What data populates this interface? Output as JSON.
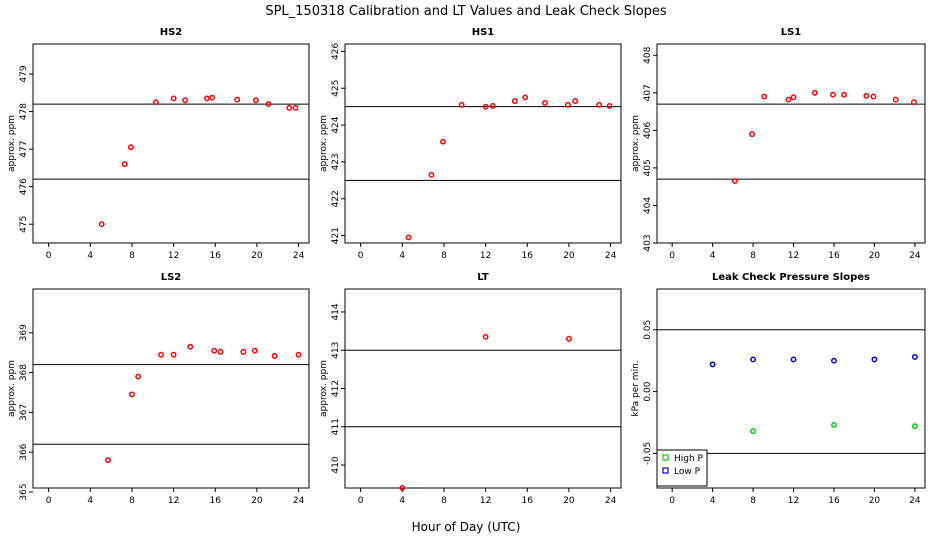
{
  "figure": {
    "title": "SPL_150318  Calibration and LT Values and Leak Check Slopes",
    "xlabel": "Hour of Day (UTC)"
  },
  "chart_data": [
    {
      "type": "scatter",
      "title": "HS2",
      "ylabel": "approx. ppm",
      "xlim": [
        -1.5,
        25
      ],
      "ylim": [
        474.5,
        479.8
      ],
      "x_ticks": [
        0,
        4,
        8,
        12,
        16,
        20,
        24
      ],
      "y_ticks": [
        475,
        476,
        477,
        478,
        479
      ],
      "hlines": [
        476.2,
        478.2
      ],
      "series": [
        {
          "marker": "circle",
          "color": "#ff0000",
          "x": [
            5.1,
            7.3,
            7.9,
            10.3,
            12.0,
            13.1,
            15.2,
            15.7,
            18.1,
            19.9,
            21.1,
            23.1,
            23.7
          ],
          "y": [
            475.0,
            476.6,
            477.05,
            478.25,
            478.35,
            478.3,
            478.35,
            478.37,
            478.32,
            478.3,
            478.2,
            478.1,
            478.1
          ]
        }
      ]
    },
    {
      "type": "scatter",
      "title": "HS1",
      "ylabel": "approx. ppm",
      "xlim": [
        -1.5,
        25
      ],
      "ylim": [
        420.8,
        426.2
      ],
      "x_ticks": [
        0,
        4,
        8,
        12,
        16,
        20,
        24
      ],
      "y_ticks": [
        421,
        422,
        423,
        424,
        425,
        426
      ],
      "hlines": [
        422.5,
        424.5
      ],
      "series": [
        {
          "marker": "circle",
          "color": "#ff0000",
          "x": [
            4.6,
            6.8,
            7.9,
            9.7,
            12.0,
            12.7,
            14.8,
            15.8,
            17.7,
            19.9,
            20.6,
            22.9,
            23.9
          ],
          "y": [
            420.95,
            422.65,
            423.55,
            424.55,
            424.5,
            424.52,
            424.65,
            424.75,
            424.6,
            424.55,
            424.65,
            424.55,
            424.52
          ]
        }
      ]
    },
    {
      "type": "scatter",
      "title": "LS1",
      "ylabel": "approx. ppm",
      "xlim": [
        -1.5,
        25
      ],
      "ylim": [
        403,
        408.3
      ],
      "x_ticks": [
        0,
        4,
        8,
        12,
        16,
        20,
        24
      ],
      "y_ticks": [
        403,
        404,
        405,
        406,
        407,
        408
      ],
      "hlines": [
        404.7,
        406.7
      ],
      "series": [
        {
          "marker": "circle",
          "color": "#ff0000",
          "x": [
            6.2,
            7.9,
            9.1,
            11.5,
            12.0,
            14.1,
            15.9,
            17.0,
            19.2,
            19.9,
            22.1,
            23.9
          ],
          "y": [
            404.65,
            405.9,
            406.9,
            406.82,
            406.88,
            407.0,
            406.95,
            406.95,
            406.92,
            406.9,
            406.82,
            406.75
          ]
        }
      ]
    },
    {
      "type": "scatter",
      "title": "LS2",
      "ylabel": "approx. ppm",
      "xlim": [
        -1.5,
        25
      ],
      "ylim": [
        365.1,
        370.1
      ],
      "x_ticks": [
        0,
        4,
        8,
        12,
        16,
        20,
        24
      ],
      "y_ticks": [
        365,
        366,
        367,
        368,
        369
      ],
      "hlines": [
        366.2,
        368.2
      ],
      "series": [
        {
          "marker": "circle",
          "color": "#ff0000",
          "x": [
            5.7,
            8.0,
            8.6,
            10.8,
            12.0,
            13.6,
            15.9,
            16.5,
            18.7,
            19.8,
            21.7,
            24.0
          ],
          "y": [
            365.8,
            367.45,
            367.9,
            368.45,
            368.45,
            368.65,
            368.55,
            368.52,
            368.52,
            368.55,
            368.42,
            368.45
          ]
        }
      ]
    },
    {
      "type": "scatter",
      "title": "LT",
      "ylabel": "approx. ppm",
      "xlim": [
        -1.5,
        25
      ],
      "ylim": [
        409.4,
        414.6
      ],
      "x_ticks": [
        0,
        4,
        8,
        12,
        16,
        20,
        24
      ],
      "y_ticks": [
        410,
        411,
        412,
        413,
        414
      ],
      "hlines": [
        411.0,
        413.0
      ],
      "series": [
        {
          "marker": "circle",
          "color": "#ff0000",
          "x": [
            4.0,
            12.0,
            20.0
          ],
          "y": [
            409.4,
            413.35,
            413.3
          ]
        }
      ]
    },
    {
      "type": "scatter",
      "title": "Leak Check Pressure Slopes",
      "ylabel": "kPa per min.",
      "xlim": [
        -1.5,
        25
      ],
      "ylim": [
        -0.078,
        0.083
      ],
      "x_ticks": [
        0,
        4,
        8,
        12,
        16,
        20,
        24
      ],
      "y_ticks": [
        -0.05,
        0.0,
        0.05
      ],
      "y_tick_labels": [
        "-0.05",
        "0.00",
        "0.05"
      ],
      "hlines": [
        0.05,
        -0.05
      ],
      "legend": "bottom-left",
      "series": [
        {
          "name": "High P",
          "marker": "circle",
          "color": "#00cc00",
          "x": [
            8.0,
            16.0,
            24.0
          ],
          "y": [
            -0.032,
            -0.027,
            -0.028
          ]
        },
        {
          "name": "Low P",
          "marker": "circle",
          "color": "#0000cc",
          "x": [
            4.0,
            8.0,
            12.0,
            16.0,
            20.0,
            24.0
          ],
          "y": [
            0.022,
            0.026,
            0.026,
            0.025,
            0.026,
            0.028
          ]
        }
      ]
    }
  ]
}
